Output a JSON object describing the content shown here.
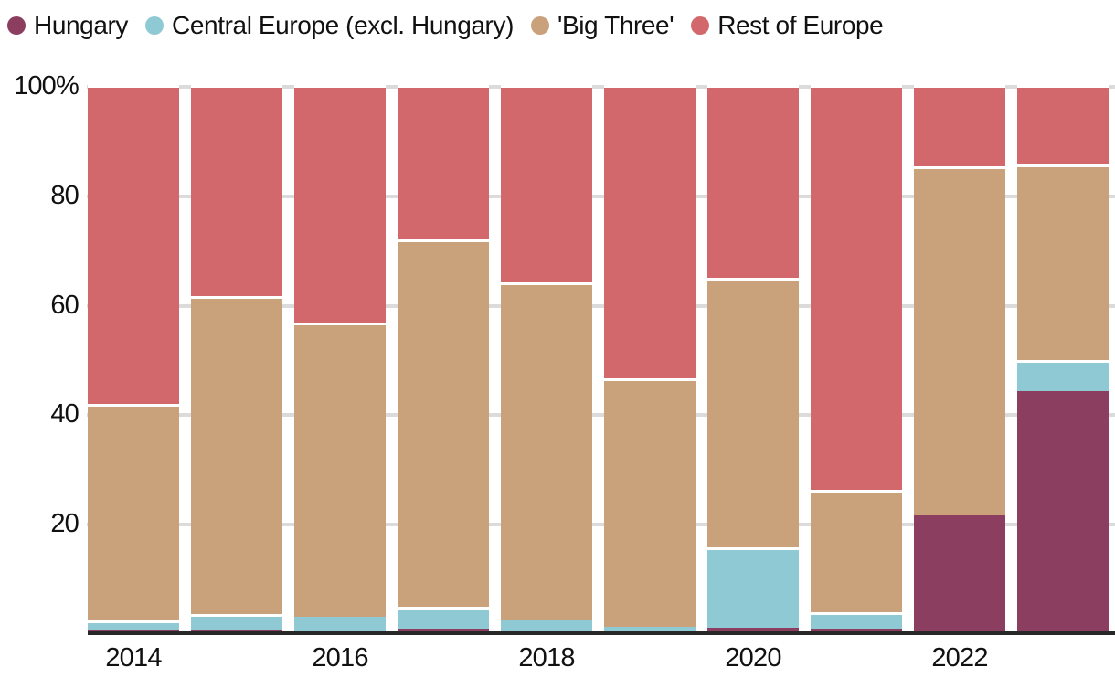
{
  "legend": {
    "items": [
      {
        "label": "Hungary",
        "color": "#8B3E60"
      },
      {
        "label": "Central Europe (excl. Hungary)",
        "color": "#8FC9D4"
      },
      {
        "label": "'Big Three'",
        "color": "#C9A17B"
      },
      {
        "label": "Rest of Europe",
        "color": "#D2686C"
      }
    ]
  },
  "axes": {
    "y_ticks": [
      {
        "label": "100%",
        "value": 100
      },
      {
        "label": "80",
        "value": 80
      },
      {
        "label": "60",
        "value": 60
      },
      {
        "label": "40",
        "value": 40
      },
      {
        "label": "20",
        "value": 20
      }
    ],
    "x_ticks": [
      {
        "label": "2014",
        "bar_index": 0
      },
      {
        "label": "2016",
        "bar_index": 2
      },
      {
        "label": "2018",
        "bar_index": 4
      },
      {
        "label": "2020",
        "bar_index": 6
      },
      {
        "label": "2022",
        "bar_index": 8
      }
    ]
  },
  "chart_data": {
    "type": "bar",
    "stacked": true,
    "percent": true,
    "title": "",
    "xlabel": "",
    "ylabel": "%",
    "ylim": [
      0,
      100
    ],
    "grid": "tick-dashes-in-gaps-at-20pct-intervals",
    "legend_position": "top-left",
    "categories": [
      "2014",
      "2015",
      "2016",
      "2017",
      "2018",
      "2019",
      "2020",
      "2021",
      "2022",
      "2023"
    ],
    "series": [
      {
        "name": "Hungary",
        "color": "#8B3E60",
        "values": [
          0.5,
          0.5,
          0,
          0.7,
          0,
          0,
          0.8,
          0.6,
          21.3,
          44.1
        ]
      },
      {
        "name": "Central Europe (excl. Hungary)",
        "color": "#8FC9D4",
        "values": [
          1.7,
          2.8,
          2.8,
          3.9,
          2.2,
          1.0,
          14.8,
          3.0,
          0,
          5.7
        ]
      },
      {
        "name": "'Big Three'",
        "color": "#C9A17B",
        "values": [
          39.5,
          58.2,
          53.8,
          67.2,
          61.7,
          45.4,
          49.1,
          22.4,
          63.8,
          35.7
        ]
      },
      {
        "name": "Rest of Europe",
        "color": "#D2686C",
        "values": [
          58.3,
          38.5,
          43.4,
          28.2,
          36.1,
          53.6,
          35.3,
          74.0,
          14.9,
          14.5
        ]
      }
    ]
  },
  "colors": {
    "background": "#FFFFFF",
    "axis_line": "#282828",
    "grid_tick": "#DBDBDB",
    "text": "#111111"
  }
}
